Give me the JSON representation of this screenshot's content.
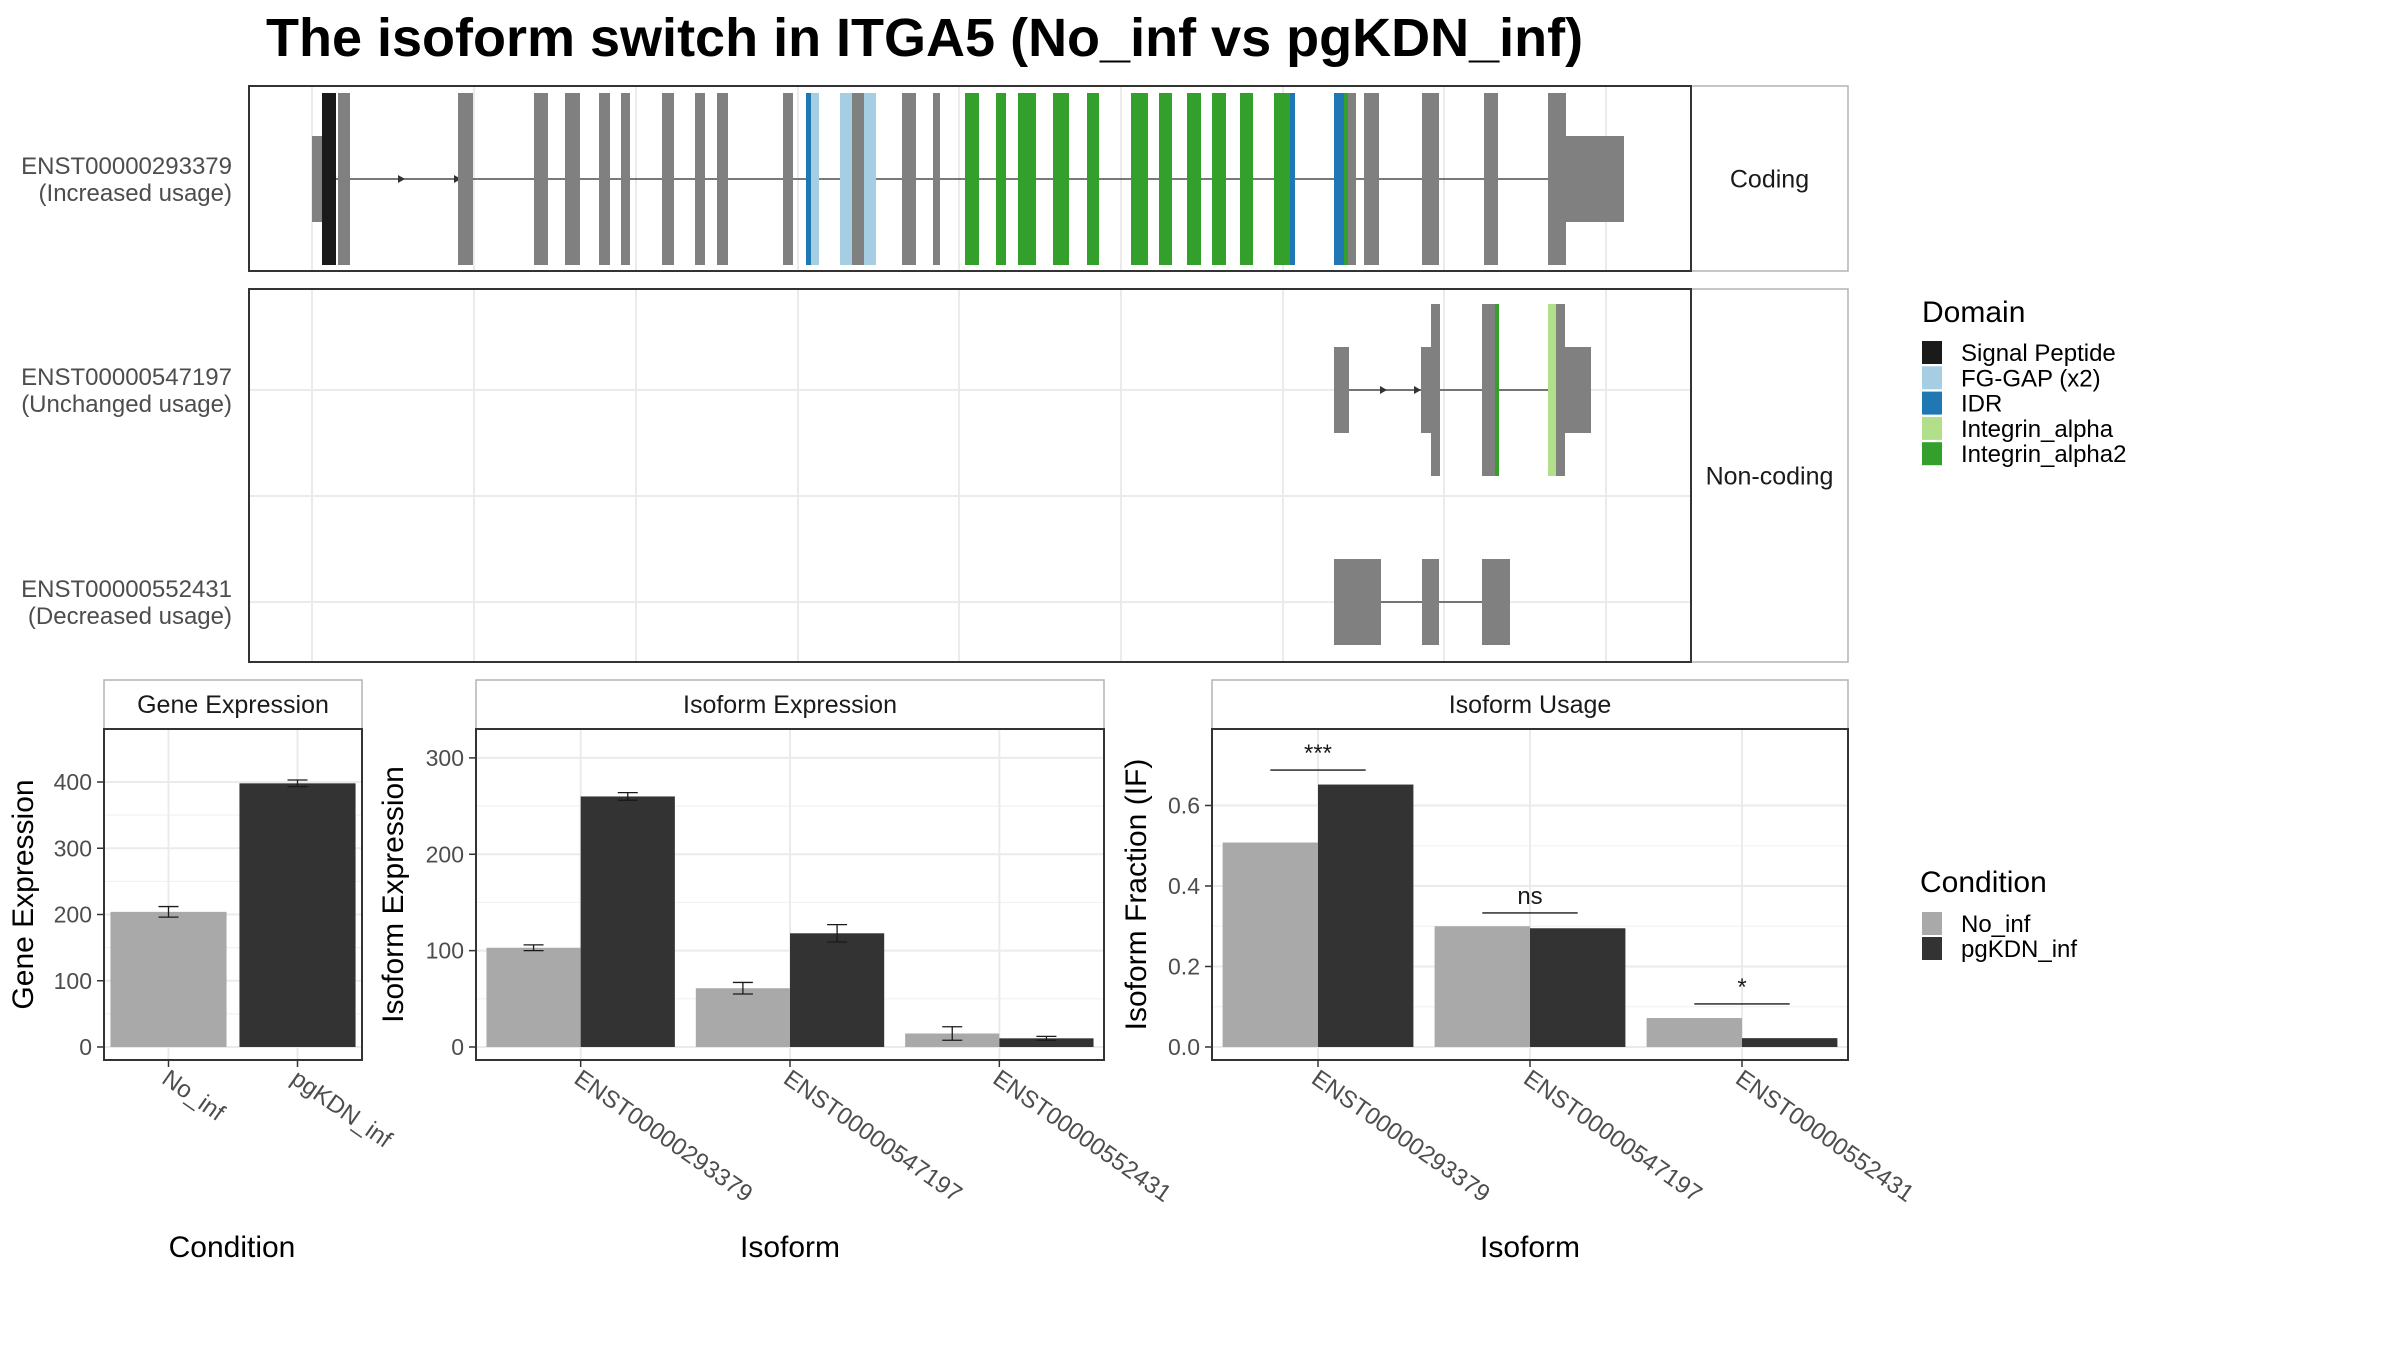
{
  "title": "The isoform switch in ITGA5 (No_inf vs pgKDN_inf)",
  "colors": {
    "no_inf": "#a9a9a9",
    "pgkdn_inf": "#333333",
    "exon": "#808080",
    "signal_peptide": "#1a1a1a",
    "fg_gap": "#a6cee3",
    "idr": "#1f78b4",
    "integrin_alpha": "#b2df8a",
    "integrin_alpha2": "#33a02c"
  },
  "structure": {
    "strips": [
      "Coding",
      "Non-coding"
    ],
    "transcripts": [
      {
        "id": "ENST00000293379",
        "usage": "(Increased usage)"
      },
      {
        "id": "ENST00000547197",
        "usage": "(Unchanged usage)"
      },
      {
        "id": "ENST00000552431",
        "usage": "(Decreased usage)"
      }
    ]
  },
  "legend_domain": {
    "title": "Domain",
    "items": [
      "Signal Peptide",
      "FG-GAP (x2)",
      "IDR",
      "Integrin_alpha",
      "Integrin_alpha2"
    ]
  },
  "legend_condition": {
    "title": "Condition",
    "items": [
      "No_inf",
      "pgKDN_inf"
    ]
  },
  "chart_data": [
    {
      "type": "bar",
      "panel": "Gene Expression",
      "categories": [
        "No_inf",
        "pgKDN_inf"
      ],
      "values": [
        204,
        398
      ],
      "errors": [
        8,
        5
      ],
      "xlabel": "Condition",
      "ylabel": "Gene Expression",
      "ylim": [
        0,
        480
      ],
      "yticks": [
        0,
        100,
        200,
        300,
        400
      ]
    },
    {
      "type": "bar",
      "panel": "Isoform Expression",
      "categories": [
        "ENST00000293379",
        "ENST00000547197",
        "ENST00000552431"
      ],
      "series": [
        {
          "name": "No_inf",
          "values": [
            103,
            61,
            14
          ],
          "errors": [
            3,
            6,
            7
          ]
        },
        {
          "name": "pgKDN_inf",
          "values": [
            260,
            118,
            9
          ],
          "errors": [
            4,
            9,
            2
          ]
        }
      ],
      "xlabel": "Isoform",
      "ylabel": "Isoform Expression",
      "ylim": [
        0,
        330
      ],
      "yticks": [
        0,
        100,
        200,
        300
      ]
    },
    {
      "type": "bar",
      "panel": "Isoform Usage",
      "categories": [
        "ENST00000293379",
        "ENST00000547197",
        "ENST00000552431"
      ],
      "series": [
        {
          "name": "No_inf",
          "values": [
            0.508,
            0.3,
            0.072
          ]
        },
        {
          "name": "pgKDN_inf",
          "values": [
            0.652,
            0.295,
            0.022
          ]
        }
      ],
      "significance": [
        "***",
        "ns",
        "*"
      ],
      "sig_y": [
        0.688,
        0.333,
        0.107
      ],
      "xlabel": "Isoform",
      "ylabel": "Isoform Fraction (IF)",
      "ylim": [
        0,
        0.79
      ],
      "yticks": [
        0.0,
        0.2,
        0.4,
        0.6
      ]
    }
  ]
}
